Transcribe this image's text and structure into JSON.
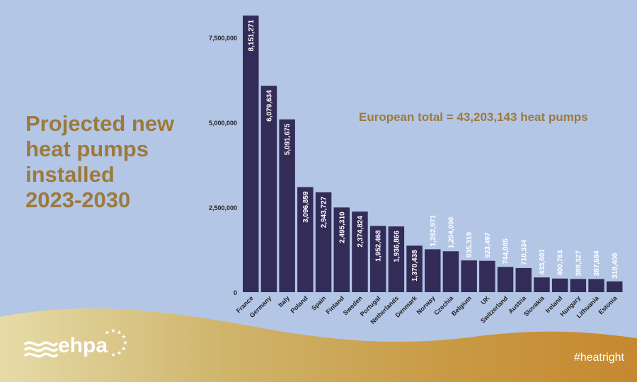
{
  "page": {
    "title_lines": [
      "Projected new",
      "heat pumps",
      "installed",
      "2023-2030"
    ],
    "total_text": "European total = 43,203,143 heat pumps",
    "brand": "ehpa",
    "hashtag": "#heatright"
  },
  "colors": {
    "background": "#b4c6e6",
    "bar": "#332c58",
    "accent": "#9c7a3c",
    "bar_label": "#ffffff"
  },
  "chart_data": {
    "type": "bar",
    "categories": [
      "France",
      "Germany",
      "Italy",
      "Poland",
      "Spain",
      "Finland",
      "Sweden",
      "Portugal",
      "Netherlands",
      "Denmark",
      "Norway",
      "Czechia",
      "Belgium",
      "UK",
      "Switzerland",
      "Austria",
      "Slovakia",
      "Ireland",
      "Hungary",
      "Lithuania",
      "Estonia"
    ],
    "values": [
      8151271,
      6079634,
      5091675,
      3096859,
      2943727,
      2495310,
      2374824,
      1952468,
      1936866,
      1370438,
      1262971,
      1204090,
      935319,
      923497,
      744085,
      710334,
      433601,
      400763,
      389327,
      387684,
      318400
    ],
    "value_labels": [
      "8,151,271",
      "6,079,634",
      "5,091,675",
      "3,096,859",
      "2,943,727",
      "2,495,310",
      "2,374,824",
      "1,952,468",
      "1,936,866",
      "1,370,438",
      "1,262,971",
      "1,204,090",
      "935,319",
      "923,497",
      "744,085",
      "710,334",
      "433,601",
      "400,763",
      "389,327",
      "387,684",
      "318,400"
    ],
    "y_ticks": [
      0,
      2500000,
      5000000,
      7500000
    ],
    "y_tick_labels": [
      "0",
      "2,500,000",
      "5,000,000",
      "7,500,000"
    ],
    "ylim": [
      0,
      8150000
    ],
    "grid": false,
    "legend": "none"
  }
}
